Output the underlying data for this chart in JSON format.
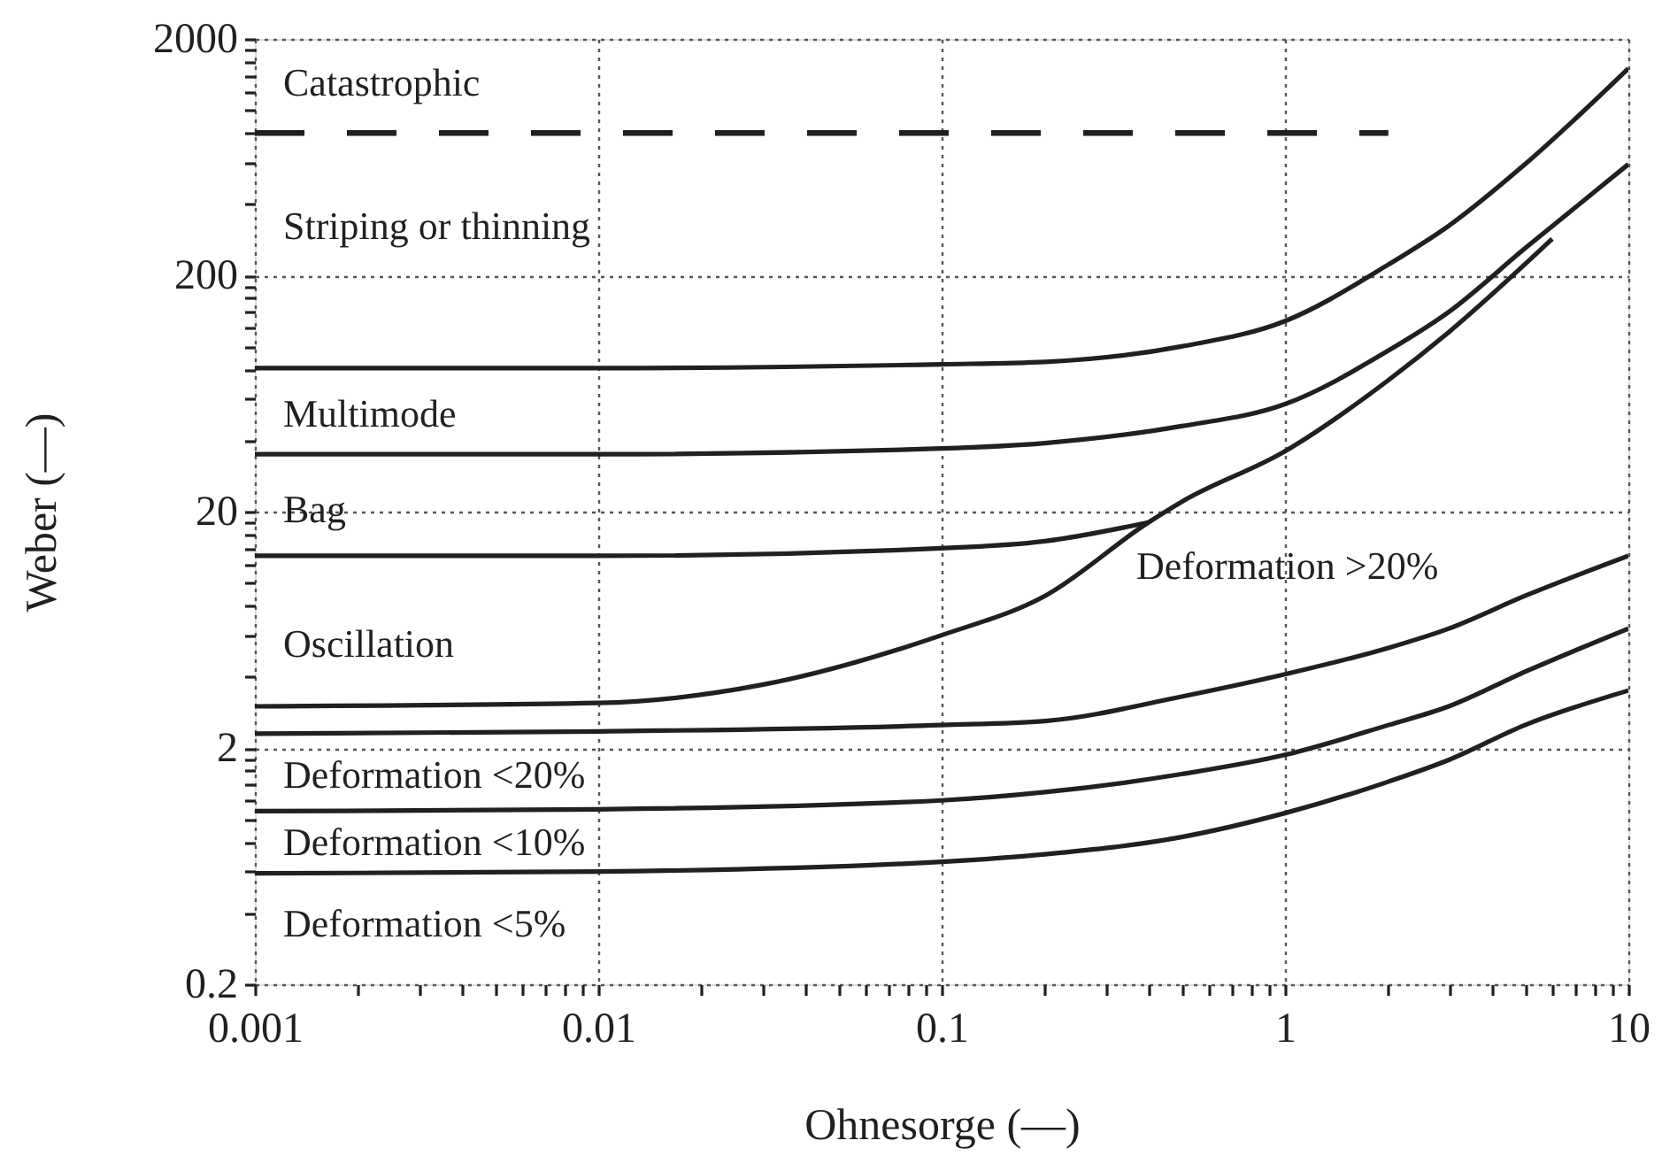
{
  "chart_data": {
    "type": "line",
    "xlabel": "Ohnesorge (—)",
    "ylabel": "Weber (—)",
    "log": "xy",
    "grid": true,
    "marker": "none",
    "xlim": [
      0.001,
      10
    ],
    "ylim": [
      0.2,
      2000
    ],
    "xticks": [
      0.001,
      {
        "value": 0.002,
        "label": null
      },
      {
        "value": 0.003,
        "label": null
      },
      {
        "value": 0.004,
        "label": null
      },
      {
        "value": 0.005,
        "label": null
      },
      {
        "value": 0.006,
        "label": null
      },
      {
        "value": 0.007,
        "label": null
      },
      {
        "value": 0.008,
        "label": null
      },
      {
        "value": 0.009,
        "label": null
      },
      0.01,
      {
        "value": 0.02,
        "label": null
      },
      {
        "value": 0.03,
        "label": null
      },
      {
        "value": 0.04,
        "label": null
      },
      {
        "value": 0.05,
        "label": null
      },
      {
        "value": 0.06,
        "label": null
      },
      {
        "value": 0.07,
        "label": null
      },
      {
        "value": 0.08,
        "label": null
      },
      {
        "value": 0.09,
        "label": null
      },
      0.1,
      {
        "value": 0.2,
        "label": null
      },
      {
        "value": 0.3,
        "label": null
      },
      {
        "value": 0.4,
        "label": null
      },
      {
        "value": 0.5,
        "label": null
      },
      {
        "value": 0.6,
        "label": null
      },
      {
        "value": 0.7,
        "label": null
      },
      {
        "value": 0.8,
        "label": null
      },
      {
        "value": 0.9,
        "label": null
      },
      1,
      {
        "value": 2,
        "label": null
      },
      {
        "value": 3,
        "label": null
      },
      {
        "value": 4,
        "label": null
      },
      {
        "value": 5,
        "label": null
      },
      {
        "value": 6,
        "label": null
      },
      {
        "value": 7,
        "label": null
      },
      {
        "value": 8,
        "label": null
      },
      {
        "value": 9,
        "label": null
      },
      10
    ],
    "yticks": [
      0.2,
      {
        "value": 0.4,
        "label": null
      },
      {
        "value": 0.6,
        "label": null
      },
      {
        "value": 0.8,
        "label": null
      },
      {
        "value": 1,
        "label": null
      },
      {
        "value": 1.2,
        "label": null
      },
      {
        "value": 1.4,
        "label": null
      },
      {
        "value": 1.6,
        "label": null
      },
      {
        "value": 1.8,
        "label": null
      },
      2,
      {
        "value": 4,
        "label": null
      },
      {
        "value": 6,
        "label": null
      },
      {
        "value": 8,
        "label": null
      },
      {
        "value": 10,
        "label": null
      },
      {
        "value": 12,
        "label": null
      },
      {
        "value": 14,
        "label": null
      },
      {
        "value": 16,
        "label": null
      },
      {
        "value": 18,
        "label": null
      },
      20,
      {
        "value": 40,
        "label": null
      },
      {
        "value": 60,
        "label": null
      },
      {
        "value": 80,
        "label": null
      },
      {
        "value": 100,
        "label": null
      },
      {
        "value": 120,
        "label": null
      },
      {
        "value": 140,
        "label": null
      },
      {
        "value": 160,
        "label": null
      },
      {
        "value": 180,
        "label": null
      },
      200,
      {
        "value": 400,
        "label": null
      },
      {
        "value": 600,
        "label": null
      },
      {
        "value": 800,
        "label": null
      },
      {
        "value": 1000,
        "label": null
      },
      {
        "value": 1200,
        "label": null
      },
      {
        "value": 1400,
        "label": null
      },
      {
        "value": 1600,
        "label": null
      },
      {
        "value": 1800,
        "label": null
      },
      2000
    ],
    "series": [
      {
        "color": "#231f20",
        "line_style": "dashed",
        "x": [
          0.001,
          2
        ],
        "values": [
          800,
          800
        ]
      },
      {
        "color": "#231f20",
        "x": [
          0.001,
          0.01,
          0.1,
          0.2,
          0.5,
          1,
          2,
          3,
          5,
          10
        ],
        "values": [
          81,
          81,
          84,
          86,
          100,
          128,
          222,
          324,
          590,
          1500
        ]
      },
      {
        "color": "#231f20",
        "x": [
          0.001,
          0.01,
          0.1,
          0.2,
          0.5,
          1,
          2,
          3,
          5,
          10
        ],
        "values": [
          35,
          35,
          37,
          39,
          46,
          57,
          96,
          140,
          260,
          590
        ]
      },
      {
        "color": "#231f20",
        "x": [
          0.001,
          0.01,
          0.1,
          0.2,
          0.4
        ],
        "values": [
          13,
          13,
          14,
          15,
          18
        ]
      },
      {
        "color": "#231f20",
        "x": [
          0.001,
          0.01,
          0.03,
          0.1,
          0.2,
          0.4,
          0.5,
          1,
          2,
          3,
          6
        ],
        "values": [
          3.0,
          3.1,
          3.7,
          6.0,
          8.8,
          18,
          22,
          36,
          72,
          115,
          285
        ]
      },
      {
        "color": "#231f20",
        "x": [
          0.001,
          0.01,
          0.1,
          0.2,
          0.5,
          1,
          2,
          3,
          5,
          10
        ],
        "values": [
          2.3,
          2.35,
          2.5,
          2.6,
          3.3,
          4.1,
          5.3,
          6.4,
          8.8,
          13
        ]
      },
      {
        "color": "#231f20",
        "x": [
          0.001,
          0.01,
          0.1,
          0.2,
          0.5,
          1,
          2,
          3,
          5,
          10
        ],
        "values": [
          1.08,
          1.1,
          1.2,
          1.3,
          1.55,
          1.87,
          2.5,
          3.0,
          4.2,
          6.4
        ]
      },
      {
        "color": "#231f20",
        "x": [
          0.001,
          0.01,
          0.1,
          0.2,
          0.5,
          1,
          2,
          3,
          5,
          10
        ],
        "values": [
          0.59,
          0.6,
          0.66,
          0.71,
          0.84,
          1.06,
          1.44,
          1.78,
          2.5,
          3.5
        ]
      }
    ],
    "annotations": [
      "Catastrophic",
      "Striping or thinning",
      "Multimode",
      "Bag",
      "Oscillation",
      "Deformation <20%",
      "Deformation <10%",
      "Deformation <5%",
      "Deformation >20%"
    ]
  }
}
